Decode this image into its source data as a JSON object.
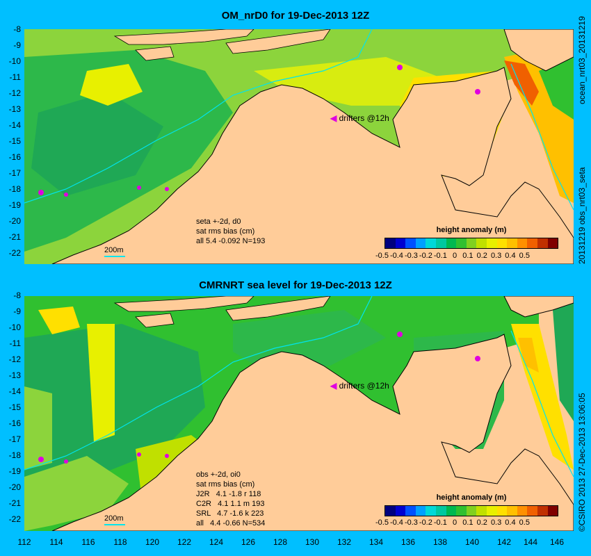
{
  "panel1": {
    "title": "OM_nrD0 for 19-Dec-2013 12Z",
    "side_label": "20131219 obs_nrt03_seta",
    "side_label_top": "ocean_nrt03_20131219",
    "note_lines": [
      "seta +-2d, d0",
      "sat rms bias (cm)",
      "all 5.4 -0.092 N=193"
    ],
    "drifters_label": "drifters @12h",
    "scale_label": "200m"
  },
  "panel2": {
    "title": "CMRNRT sea level  for 19-Dec-2013 12Z",
    "side_label": "©CSIRO 2013  27-Dec-2013 13:06:05",
    "note_lines": [
      "obs +-2d, oi0",
      "sat rms bias (cm)",
      "J2R   4.1 -1.8 r 118",
      "C2R   4.1 1.1 m 193",
      "SRL   4.7 -1.6 k 223",
      "all   4.4 -0.66 N=534"
    ],
    "drifters_label": "drifters @12h",
    "scale_label": "200m"
  },
  "colorbar": {
    "title": "height anomaly (m)",
    "ticks": [
      "-0.5",
      "-0.4",
      "-0.3",
      "-0.2",
      "-0.1",
      "0",
      "0.1",
      "0.2",
      "0.3",
      "0.4",
      "0.5"
    ],
    "colors": [
      "#00007F",
      "#0000D0",
      "#0050FF",
      "#00A0FF",
      "#00D8D8",
      "#00C8A0",
      "#00B850",
      "#30C030",
      "#80D020",
      "#C0E000",
      "#E8F000",
      "#FFE000",
      "#FFC000",
      "#FF9000",
      "#F06000",
      "#C03000",
      "#7F0000"
    ]
  },
  "axes": {
    "y_ticks": [
      "-8",
      "-9",
      "-10",
      "-11",
      "-12",
      "-13",
      "-14",
      "-15",
      "-16",
      "-17",
      "-18",
      "-19",
      "-20",
      "-21",
      "-22"
    ],
    "x_ticks": [
      "112",
      "114",
      "116",
      "118",
      "120",
      "122",
      "124",
      "126",
      "128",
      "130",
      "132",
      "134",
      "136",
      "138",
      "140",
      "142",
      "144",
      "146"
    ]
  },
  "colors": {
    "land": "#FFCC99",
    "background": "#00BFFF",
    "drifter": "#E000E0"
  }
}
